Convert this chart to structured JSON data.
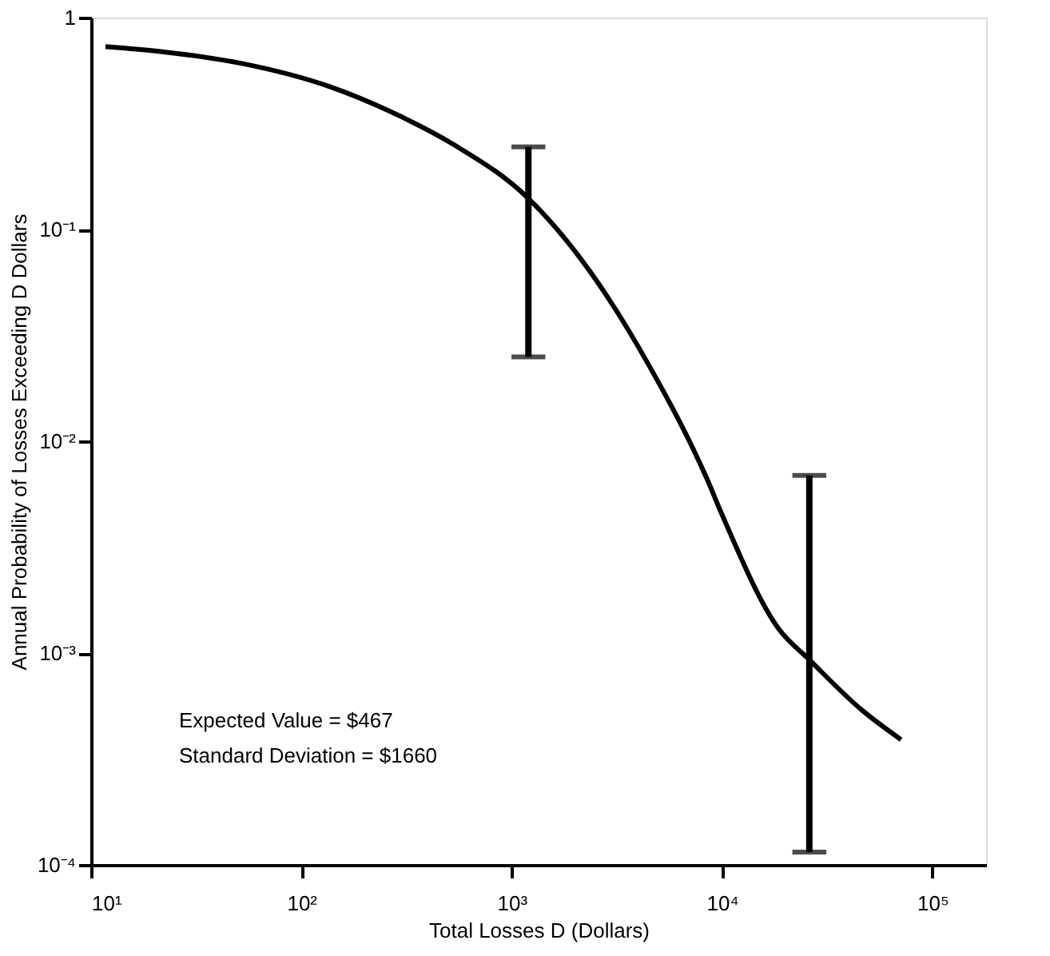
{
  "chart_data": {
    "type": "line",
    "xlabel": "Total Losses D (Dollars)",
    "ylabel": "Annual Probability of Losses Exceeding D Dollars",
    "log": "xy",
    "grid": false,
    "marker": "none",
    "line_style": "solid",
    "xlim": [
      10,
      180000
    ],
    "ylim": [
      0.0001,
      1
    ],
    "xticks": [
      {
        "value": 10,
        "label": "10¹"
      },
      {
        "value": 100,
        "label": "10²"
      },
      {
        "value": 1000,
        "label": "10³"
      },
      {
        "value": 10000,
        "label": "10⁴"
      },
      {
        "value": 100000,
        "label": "10⁵"
      }
    ],
    "yticks": [
      1,
      {
        "value": 0.1,
        "label": "10⁻¹"
      },
      {
        "value": 0.01,
        "label": "10⁻²"
      },
      {
        "value": 0.001,
        "label": "10⁻³"
      },
      {
        "value": 0.0001,
        "label": "10⁻⁴"
      }
    ],
    "series": [
      {
        "color": "#000000",
        "x": [
          11.7,
          21.8,
          51,
          138,
          265,
          535,
          1200,
          2570,
          4470,
          8500,
          10000,
          18600,
          26000,
          46000,
          71000
        ],
        "values": [
          0.73,
          0.69,
          0.61,
          0.47,
          0.36,
          0.25,
          0.14,
          0.056,
          0.023,
          0.0066,
          0.0045,
          0.0013,
          0.00093,
          0.00054,
          0.00039
        ],
        "errors": [
          null,
          null,
          null,
          null,
          null,
          null,
          [
            0.025,
            0.245
          ],
          null,
          null,
          null,
          null,
          null,
          [
            0.000115,
            0.0069
          ],
          null,
          null
        ]
      }
    ],
    "annotations": [
      "Expected Value       = $467",
      "Standard Deviation =  $1660"
    ]
  }
}
